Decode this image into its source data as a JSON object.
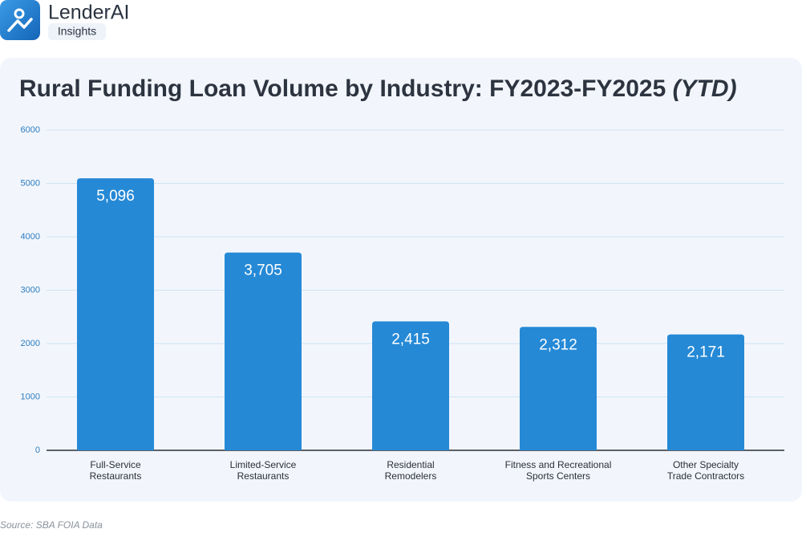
{
  "header": {
    "brand": "LenderAI",
    "tag": "Insights"
  },
  "chart_data": {
    "type": "bar",
    "title": "Rural Funding Loan Volume by Industry: FY2023-FY2025",
    "title_suffix": "(YTD)",
    "categories": [
      "Full-Service\nRestaurants",
      "Limited-Service\nRestaurants",
      "Residential\nRemodelers",
      "Fitness and Recreational\nSports Centers",
      "Other Specialty\nTrade Contractors"
    ],
    "values": [
      5096,
      3705,
      2415,
      2312,
      2171
    ],
    "value_labels": [
      "5,096",
      "3,705",
      "2,415",
      "2,312",
      "2,171"
    ],
    "color": "#2589d6",
    "ylim": [
      0,
      6000
    ],
    "yticks": [
      0,
      1000,
      2000,
      3000,
      4000,
      5000,
      6000
    ],
    "grid": true
  },
  "footer": {
    "source": "Source: SBA FOIA Data"
  }
}
